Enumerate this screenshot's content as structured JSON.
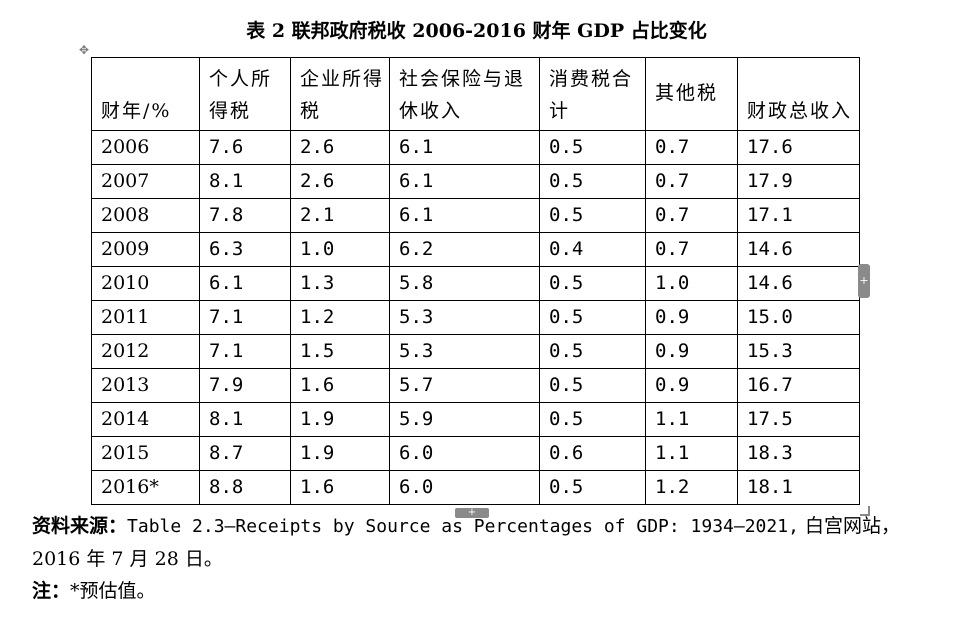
{
  "title": "表 2 联邦政府税收 2006-2016 财年 GDP 占比变化",
  "table": {
    "headers": [
      "财年/%",
      "个人所得税",
      "企业所得税",
      "社会保险与退休收入",
      "消费税合计",
      "其他税",
      "财政总收入"
    ],
    "rows": [
      [
        "2006",
        "7.6",
        "2.6",
        "6.1",
        "0.5",
        "0.7",
        "17.6"
      ],
      [
        "2007",
        "8.1",
        "2.6",
        "6.1",
        "0.5",
        "0.7",
        "17.9"
      ],
      [
        "2008",
        "7.8",
        "2.1",
        "6.1",
        "0.5",
        "0.7",
        "17.1"
      ],
      [
        "2009",
        "6.3",
        "1.0",
        "6.2",
        "0.4",
        "0.7",
        "14.6"
      ],
      [
        "2010",
        "6.1",
        "1.3",
        "5.8",
        "0.5",
        "1.0",
        "14.6"
      ],
      [
        "2011",
        "7.1",
        "1.2",
        "5.3",
        "0.5",
        "0.9",
        "15.0"
      ],
      [
        "2012",
        "7.1",
        "1.5",
        "5.3",
        "0.5",
        "0.9",
        "15.3"
      ],
      [
        "2013",
        "7.9",
        "1.6",
        "5.7",
        "0.5",
        "0.9",
        "16.7"
      ],
      [
        "2014",
        "8.1",
        "1.9",
        "5.9",
        "0.5",
        "1.1",
        "17.5"
      ],
      [
        "2015",
        "8.7",
        "1.9",
        "6.0",
        "0.6",
        "1.1",
        "18.3"
      ],
      [
        "2016*",
        "8.8",
        "1.6",
        "6.0",
        "0.5",
        "1.2",
        "18.1"
      ]
    ]
  },
  "source": {
    "label": "资料来源：",
    "text_en": "Table 2.3—Receipts by Source as Percentages of GDP: 1934–2021,",
    "text_cn": "白宫网站，2016 年 7 月 28 日。"
  },
  "note": {
    "label": "注：",
    "text": "*预估值。"
  },
  "ui": {
    "move_handle_icon": "move-arrows-icon",
    "add_row_icon": "plus-icon",
    "add_col_icon": "plus-icon",
    "resize_icon": "resize-corner-icon"
  }
}
